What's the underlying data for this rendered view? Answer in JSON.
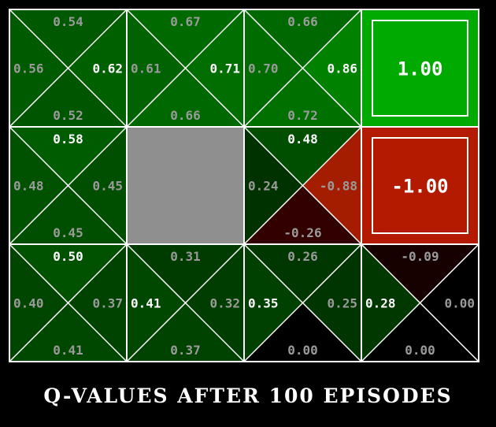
{
  "caption": "Q-VALUES AFTER 100 EPISODES",
  "colors": {
    "background": "#000000",
    "grid_line": "#ffffff",
    "wall": "#8f8f8f",
    "text_max": "#ffffff",
    "text_other": "#9a9a9a"
  },
  "grid": {
    "rows": 3,
    "cols": 4,
    "cells": [
      {
        "row": 0,
        "col": 0,
        "type": "state",
        "q": {
          "north": "0.54",
          "east": "0.62",
          "south": "0.52",
          "west": "0.56"
        },
        "best": "east",
        "fills": {
          "north": "#005800",
          "east": "#006000",
          "south": "#005500",
          "west": "#005a00"
        }
      },
      {
        "row": 0,
        "col": 1,
        "type": "state",
        "q": {
          "north": "0.67",
          "east": "0.71",
          "south": "0.66",
          "west": "0.61"
        },
        "best": "east",
        "fills": {
          "north": "#006a00",
          "east": "#006e00",
          "south": "#006800",
          "west": "#006200"
        }
      },
      {
        "row": 0,
        "col": 2,
        "type": "state",
        "q": {
          "north": "0.66",
          "east": "0.86",
          "south": "0.72",
          "west": "0.70"
        },
        "best": "east",
        "fills": {
          "north": "#006800",
          "east": "#008200",
          "south": "#007000",
          "west": "#006c00"
        }
      },
      {
        "row": 0,
        "col": 3,
        "type": "terminal",
        "value": "1.00",
        "fill": "#00aa00"
      },
      {
        "row": 1,
        "col": 0,
        "type": "state",
        "q": {
          "north": "0.58",
          "east": "0.45",
          "south": "0.45",
          "west": "0.48"
        },
        "best": "north",
        "fills": {
          "north": "#005c00",
          "east": "#004e00",
          "south": "#004e00",
          "west": "#005100"
        }
      },
      {
        "row": 1,
        "col": 1,
        "type": "wall"
      },
      {
        "row": 1,
        "col": 2,
        "type": "state",
        "q": {
          "north": "0.48",
          "east": "-0.88",
          "south": "-0.26",
          "west": "0.24"
        },
        "best": "north",
        "fills": {
          "north": "#004f00",
          "east": "#a51d00",
          "south": "#330000",
          "west": "#003200"
        }
      },
      {
        "row": 1,
        "col": 3,
        "type": "terminal",
        "value": "-1.00",
        "fill": "#b41a00"
      },
      {
        "row": 2,
        "col": 0,
        "type": "state",
        "q": {
          "north": "0.50",
          "east": "0.37",
          "south": "0.41",
          "west": "0.40"
        },
        "best": "north",
        "fills": {
          "north": "#005200",
          "east": "#004300",
          "south": "#004700",
          "west": "#004600"
        }
      },
      {
        "row": 2,
        "col": 1,
        "type": "state",
        "q": {
          "north": "0.31",
          "east": "0.32",
          "south": "0.37",
          "west": "0.41"
        },
        "best": "west",
        "fills": {
          "north": "#003c00",
          "east": "#003d00",
          "south": "#004300",
          "west": "#004700"
        }
      },
      {
        "row": 2,
        "col": 2,
        "type": "state",
        "q": {
          "north": "0.26",
          "east": "0.25",
          "south": "0.00",
          "west": "0.35"
        },
        "best": "west",
        "fills": {
          "north": "#003600",
          "east": "#003400",
          "south": "#000000",
          "west": "#004000"
        }
      },
      {
        "row": 2,
        "col": 3,
        "type": "state",
        "q": {
          "north": "-0.09",
          "east": "0.00",
          "south": "0.00",
          "west": "0.28"
        },
        "best": "west",
        "fills": {
          "north": "#160000",
          "east": "#000000",
          "south": "#000000",
          "west": "#003800"
        }
      }
    ]
  }
}
